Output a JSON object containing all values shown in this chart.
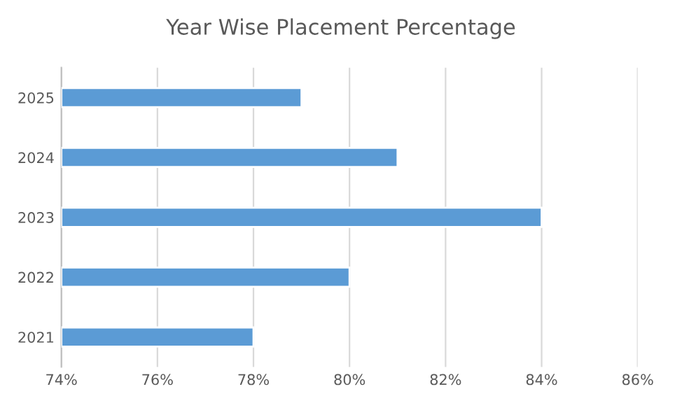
{
  "chart_data": {
    "type": "bar",
    "orientation": "horizontal",
    "title": "Year Wise Placement Percentage",
    "categories": [
      "2025",
      "2024",
      "2023",
      "2022",
      "2021"
    ],
    "values": [
      79,
      81,
      84,
      80,
      78
    ],
    "color": "#5b9bd5",
    "xlim": [
      74,
      86
    ],
    "xticks": [
      {
        "value": 74,
        "label": "74%"
      },
      {
        "value": 76,
        "label": "76%"
      },
      {
        "value": 78,
        "label": "78%"
      },
      {
        "value": 80,
        "label": "80%"
      },
      {
        "value": 82,
        "label": "82%"
      },
      {
        "value": 84,
        "label": "84%"
      },
      {
        "value": 86,
        "label": "86%"
      }
    ],
    "grid": "x",
    "legend": false
  }
}
